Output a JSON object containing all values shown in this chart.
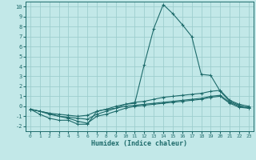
{
  "xlabel": "Humidex (Indice chaleur)",
  "background_color": "#c2e8e8",
  "grid_color": "#9ecece",
  "line_color": "#1e6b6b",
  "xlim": [
    -0.5,
    23.5
  ],
  "ylim": [
    -2.5,
    10.5
  ],
  "xticks": [
    0,
    1,
    2,
    3,
    4,
    5,
    6,
    7,
    8,
    9,
    10,
    11,
    12,
    13,
    14,
    15,
    16,
    17,
    18,
    19,
    20,
    21,
    22,
    23
  ],
  "yticks": [
    -2,
    -1,
    0,
    1,
    2,
    3,
    4,
    5,
    6,
    7,
    8,
    9,
    10
  ],
  "series": [
    {
      "x": [
        0,
        1,
        2,
        3,
        4,
        5,
        6,
        7,
        8,
        9,
        10,
        11,
        12,
        13,
        14,
        15,
        16,
        17,
        18,
        19,
        20,
        21,
        22,
        23
      ],
      "y": [
        -0.3,
        -0.8,
        -1.2,
        -1.4,
        -1.4,
        -1.8,
        -1.8,
        -0.5,
        -0.3,
        -0.2,
        0.2,
        0.3,
        4.2,
        7.8,
        10.2,
        9.3,
        8.2,
        7.0,
        3.2,
        3.1,
        1.5,
        0.5,
        0.1,
        -0.2
      ]
    },
    {
      "x": [
        0,
        1,
        2,
        3,
        4,
        5,
        6,
        7,
        8,
        9,
        10,
        11,
        12,
        13,
        14,
        15,
        16,
        17,
        18,
        19,
        20,
        21,
        22,
        23
      ],
      "y": [
        -0.3,
        -0.5,
        -0.8,
        -1.0,
        -1.2,
        -1.5,
        -1.7,
        -1.0,
        -0.8,
        -0.5,
        -0.2,
        0.0,
        0.1,
        0.2,
        0.3,
        0.4,
        0.5,
        0.6,
        0.7,
        0.9,
        1.0,
        0.3,
        -0.1,
        -0.2
      ]
    },
    {
      "x": [
        0,
        1,
        2,
        3,
        4,
        5,
        6,
        7,
        8,
        9,
        10,
        11,
        12,
        13,
        14,
        15,
        16,
        17,
        18,
        19,
        20,
        21,
        22,
        23
      ],
      "y": [
        -0.3,
        -0.5,
        -0.7,
        -1.0,
        -1.1,
        -1.2,
        -1.3,
        -0.8,
        -0.5,
        -0.2,
        0.0,
        0.1,
        0.2,
        0.3,
        0.4,
        0.5,
        0.6,
        0.7,
        0.8,
        1.0,
        1.1,
        0.4,
        0.0,
        -0.1
      ]
    },
    {
      "x": [
        0,
        1,
        2,
        3,
        4,
        5,
        6,
        7,
        8,
        9,
        10,
        11,
        12,
        13,
        14,
        15,
        16,
        17,
        18,
        19,
        20,
        21,
        22,
        23
      ],
      "y": [
        -0.3,
        -0.5,
        -0.7,
        -0.8,
        -0.9,
        -1.0,
        -0.9,
        -0.5,
        -0.3,
        0.0,
        0.2,
        0.4,
        0.5,
        0.7,
        0.9,
        1.0,
        1.1,
        1.2,
        1.3,
        1.5,
        1.6,
        0.6,
        0.2,
        0.0
      ]
    }
  ]
}
